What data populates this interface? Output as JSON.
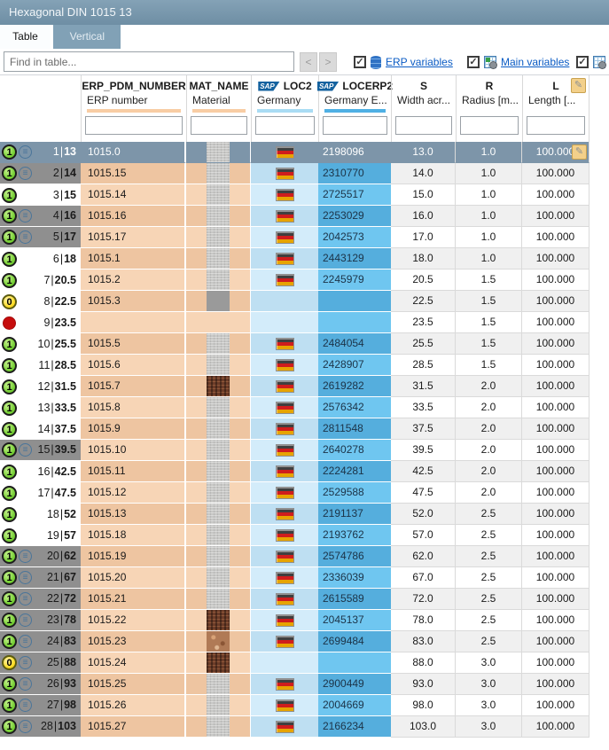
{
  "window": {
    "title": "Hexagonal DIN 1015 13"
  },
  "tabs": [
    {
      "label": "Table",
      "active": true
    },
    {
      "label": "Vertical",
      "active": false
    }
  ],
  "toolbar": {
    "search_placeholder": "Find in table...",
    "prev_label": "<",
    "next_label": ">",
    "toggles": [
      {
        "label": "ERP variables",
        "checked": true,
        "icon": "database-icon"
      },
      {
        "label": "Main variables",
        "checked": true,
        "icon": "table-gear-icon"
      },
      {
        "label": "",
        "checked": true,
        "icon": "variables-icon"
      }
    ]
  },
  "icons": {
    "sap_label": "SAP",
    "check_glyph": "✓",
    "pencil_glyph": "✎",
    "linked_glyph": "≡"
  },
  "colors": {
    "titlebar": "#7897ac",
    "selected_row": "#7d95a9",
    "linked_header": "#8f8f8f",
    "peach_dark": "#eec5a1",
    "peach_light": "#f7d5b6",
    "loc2_dark": "#bedff2",
    "loc2_light": "#d3ecfa",
    "locerp_dark": "#55aedd",
    "locerp_light": "#6fc6f0",
    "bar_peach": "#f8cda4",
    "bar_lightblue": "#a9dcf4",
    "bar_blue": "#4fb0e4",
    "link_blue": "#0a5bc4",
    "status_green": "#7bd23a",
    "status_yellow": "#ffdf2e",
    "status_red": "#c60d0d"
  },
  "columns": [
    {
      "id": "erp",
      "name": "ERP_PDM_NUMBER",
      "label": "ERP number",
      "bar": "#f8cda4",
      "sap": false
    },
    {
      "id": "mat",
      "name": "MAT_NAME",
      "label": "Material",
      "bar": "#f8cda4",
      "sap": false
    },
    {
      "id": "loc2",
      "name": "LOC2",
      "label": "Germany",
      "bar": "#a9dcf4",
      "sap": true
    },
    {
      "id": "locerp2",
      "name": "LOCERP2",
      "label": "Germany E...",
      "bar": "#4fb0e4",
      "sap": true
    },
    {
      "id": "s",
      "name": "S",
      "label": "Width acr...",
      "bar": null,
      "sap": false
    },
    {
      "id": "r",
      "name": "R",
      "label": "Radius [m...",
      "bar": null,
      "sap": false
    },
    {
      "id": "l",
      "name": "L",
      "label": "Length [...",
      "bar": null,
      "sap": false,
      "editable": true
    }
  ],
  "rows": [
    {
      "index": 1,
      "key": "13",
      "status": "green",
      "linked": true,
      "selected": true,
      "erp": "1015.0",
      "material": "steel",
      "flag": true,
      "locerp2": "2198096",
      "s": "13.0",
      "r": "1.0",
      "l": "100.000"
    },
    {
      "index": 2,
      "key": "14",
      "status": "green",
      "linked": true,
      "selected": false,
      "erp": "1015.15",
      "material": "steel",
      "flag": true,
      "locerp2": "2310770",
      "s": "14.0",
      "r": "1.0",
      "l": "100.000"
    },
    {
      "index": 3,
      "key": "15",
      "status": "green",
      "linked": false,
      "selected": false,
      "erp": "1015.14",
      "material": "steel",
      "flag": true,
      "locerp2": "2725517",
      "s": "15.0",
      "r": "1.0",
      "l": "100.000"
    },
    {
      "index": 4,
      "key": "16",
      "status": "green",
      "linked": true,
      "selected": false,
      "erp": "1015.16",
      "material": "steel",
      "flag": true,
      "locerp2": "2253029",
      "s": "16.0",
      "r": "1.0",
      "l": "100.000"
    },
    {
      "index": 5,
      "key": "17",
      "status": "green",
      "linked": true,
      "selected": false,
      "erp": "1015.17",
      "material": "steel",
      "flag": true,
      "locerp2": "2042573",
      "s": "17.0",
      "r": "1.0",
      "l": "100.000"
    },
    {
      "index": 6,
      "key": "18",
      "status": "green",
      "linked": false,
      "selected": false,
      "erp": "1015.1",
      "material": "steel",
      "flag": true,
      "locerp2": "2443129",
      "s": "18.0",
      "r": "1.0",
      "l": "100.000"
    },
    {
      "index": 7,
      "key": "20.5",
      "status": "green",
      "linked": false,
      "selected": false,
      "erp": "1015.2",
      "material": "steel",
      "flag": true,
      "locerp2": "2245979",
      "s": "20.5",
      "r": "1.5",
      "l": "100.000"
    },
    {
      "index": 8,
      "key": "22.5",
      "status": "yellow",
      "linked": false,
      "selected": false,
      "erp": "1015.3",
      "material": "gray",
      "flag": false,
      "locerp2": "",
      "s": "22.5",
      "r": "1.5",
      "l": "100.000"
    },
    {
      "index": 9,
      "key": "23.5",
      "status": "red",
      "linked": false,
      "selected": false,
      "erp": "",
      "material": "none",
      "flag": false,
      "locerp2": "",
      "s": "23.5",
      "r": "1.5",
      "l": "100.000"
    },
    {
      "index": 10,
      "key": "25.5",
      "status": "green",
      "linked": false,
      "selected": false,
      "erp": "1015.5",
      "material": "steel",
      "flag": true,
      "locerp2": "2484054",
      "s": "25.5",
      "r": "1.5",
      "l": "100.000"
    },
    {
      "index": 11,
      "key": "28.5",
      "status": "green",
      "linked": false,
      "selected": false,
      "erp": "1015.6",
      "material": "steel",
      "flag": true,
      "locerp2": "2428907",
      "s": "28.5",
      "r": "1.5",
      "l": "100.000"
    },
    {
      "index": 12,
      "key": "31.5",
      "status": "green",
      "linked": false,
      "selected": false,
      "erp": "1015.7",
      "material": "rust",
      "flag": true,
      "locerp2": "2619282",
      "s": "31.5",
      "r": "2.0",
      "l": "100.000"
    },
    {
      "index": 13,
      "key": "33.5",
      "status": "green",
      "linked": false,
      "selected": false,
      "erp": "1015.8",
      "material": "steel",
      "flag": true,
      "locerp2": "2576342",
      "s": "33.5",
      "r": "2.0",
      "l": "100.000"
    },
    {
      "index": 14,
      "key": "37.5",
      "status": "green",
      "linked": false,
      "selected": false,
      "erp": "1015.9",
      "material": "steel",
      "flag": true,
      "locerp2": "2811548",
      "s": "37.5",
      "r": "2.0",
      "l": "100.000"
    },
    {
      "index": 15,
      "key": "39.5",
      "status": "green",
      "linked": true,
      "selected": false,
      "erp": "1015.10",
      "material": "steel",
      "flag": true,
      "locerp2": "2640278",
      "s": "39.5",
      "r": "2.0",
      "l": "100.000"
    },
    {
      "index": 16,
      "key": "42.5",
      "status": "green",
      "linked": false,
      "selected": false,
      "erp": "1015.11",
      "material": "steel",
      "flag": true,
      "locerp2": "2224281",
      "s": "42.5",
      "r": "2.0",
      "l": "100.000"
    },
    {
      "index": 17,
      "key": "47.5",
      "status": "green",
      "linked": false,
      "selected": false,
      "erp": "1015.12",
      "material": "steel",
      "flag": true,
      "locerp2": "2529588",
      "s": "47.5",
      "r": "2.0",
      "l": "100.000"
    },
    {
      "index": 18,
      "key": "52",
      "status": "green",
      "linked": false,
      "selected": false,
      "erp": "1015.13",
      "material": "steel",
      "flag": true,
      "locerp2": "2191137",
      "s": "52.0",
      "r": "2.5",
      "l": "100.000"
    },
    {
      "index": 19,
      "key": "57",
      "status": "green",
      "linked": false,
      "selected": false,
      "erp": "1015.18",
      "material": "steel",
      "flag": true,
      "locerp2": "2193762",
      "s": "57.0",
      "r": "2.5",
      "l": "100.000"
    },
    {
      "index": 20,
      "key": "62",
      "status": "green",
      "linked": true,
      "selected": false,
      "erp": "1015.19",
      "material": "steel",
      "flag": true,
      "locerp2": "2574786",
      "s": "62.0",
      "r": "2.5",
      "l": "100.000"
    },
    {
      "index": 21,
      "key": "67",
      "status": "green",
      "linked": true,
      "selected": false,
      "erp": "1015.20",
      "material": "steel",
      "flag": true,
      "locerp2": "2336039",
      "s": "67.0",
      "r": "2.5",
      "l": "100.000"
    },
    {
      "index": 22,
      "key": "72",
      "status": "green",
      "linked": true,
      "selected": false,
      "erp": "1015.21",
      "material": "steel",
      "flag": true,
      "locerp2": "2615589",
      "s": "72.0",
      "r": "2.5",
      "l": "100.000"
    },
    {
      "index": 23,
      "key": "78",
      "status": "green",
      "linked": true,
      "selected": false,
      "erp": "1015.22",
      "material": "rust",
      "flag": true,
      "locerp2": "2045137",
      "s": "78.0",
      "r": "2.5",
      "l": "100.000"
    },
    {
      "index": 24,
      "key": "83",
      "status": "green",
      "linked": true,
      "selected": false,
      "erp": "1015.23",
      "material": "copper",
      "flag": true,
      "locerp2": "2699484",
      "s": "83.0",
      "r": "2.5",
      "l": "100.000"
    },
    {
      "index": 25,
      "key": "88",
      "status": "yellow",
      "linked": true,
      "selected": false,
      "erp": "1015.24",
      "material": "rust",
      "flag": false,
      "locerp2": "",
      "s": "88.0",
      "r": "3.0",
      "l": "100.000"
    },
    {
      "index": 26,
      "key": "93",
      "status": "green",
      "linked": true,
      "selected": false,
      "erp": "1015.25",
      "material": "steel",
      "flag": true,
      "locerp2": "2900449",
      "s": "93.0",
      "r": "3.0",
      "l": "100.000"
    },
    {
      "index": 27,
      "key": "98",
      "status": "green",
      "linked": true,
      "selected": false,
      "erp": "1015.26",
      "material": "steel",
      "flag": true,
      "locerp2": "2004669",
      "s": "98.0",
      "r": "3.0",
      "l": "100.000"
    },
    {
      "index": 28,
      "key": "103",
      "status": "green",
      "linked": true,
      "selected": false,
      "erp": "1015.27",
      "material": "steel",
      "flag": true,
      "locerp2": "2166234",
      "s": "103.0",
      "r": "3.0",
      "l": "100.000"
    }
  ]
}
